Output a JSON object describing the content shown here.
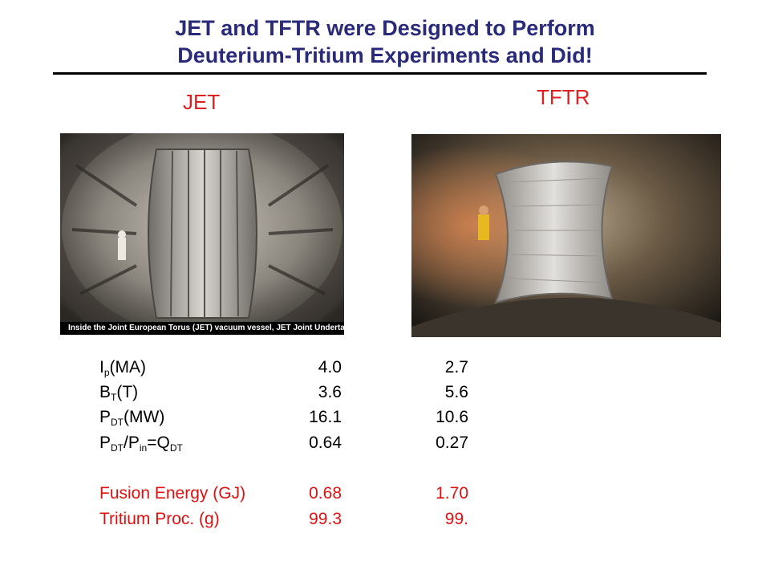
{
  "title": {
    "line1": "JET and TFTR were Designed to Perform",
    "line2": "Deuterium-Tritium Experiments and Did!"
  },
  "machines": {
    "jet": {
      "label": "JET",
      "photo_caption": "Inside the Joint European Torus (JET) vacuum vessel, JET Joint Undertaking, UK"
    },
    "tftr": {
      "label": "TFTR"
    }
  },
  "parameters": [
    {
      "base": "I",
      "sub": "p",
      "rest": "(MA)",
      "jet": "4.0",
      "tftr": "2.7",
      "color": "#000000"
    },
    {
      "base": "B",
      "sub": "T",
      "rest": "(T)",
      "jet": "3.6",
      "tftr": "5.6",
      "color": "#000000"
    },
    {
      "base": "P",
      "sub": "DT",
      "rest": "(MW)",
      "jet": "16.1",
      "tftr": "10.6",
      "color": "#000000"
    },
    {
      "base": "P",
      "sub": "DT",
      "rest": "/P",
      "sub2": "in",
      "rest2": "=Q",
      "sub3": "DT",
      "jet": "0.64",
      "tftr": "0.27",
      "color": "#000000"
    },
    {
      "base": "Fusion Energy (GJ)",
      "jet": "0.68",
      "tftr": "1.70",
      "color": "#e01010"
    },
    {
      "base": "Tritium Proc. (g)",
      "jet": "99.3",
      "tftr": "99.",
      "color": "#e01010"
    }
  ],
  "colors": {
    "title": "#2a2a7a",
    "label_red": "#e02020",
    "highlight_red": "#e01010"
  }
}
